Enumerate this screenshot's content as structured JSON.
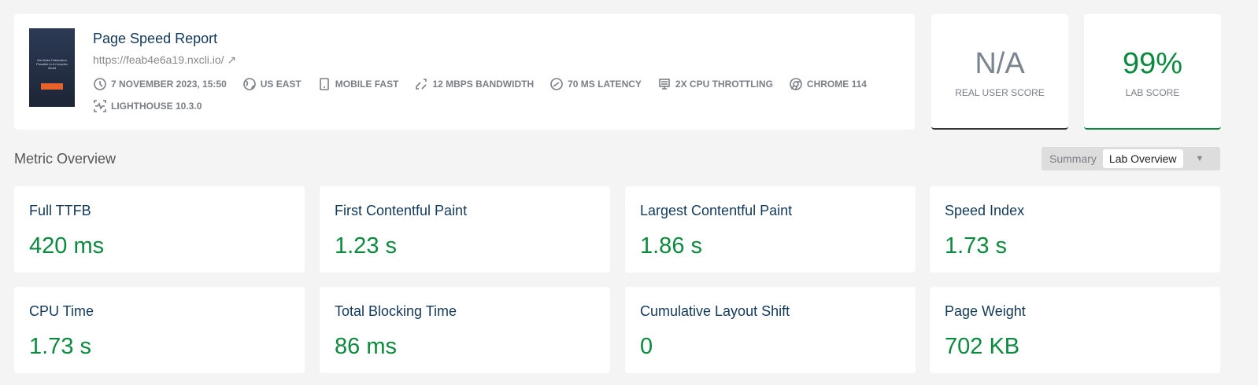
{
  "report": {
    "title": "Page Speed Report",
    "url": "https://feab4e6a19.nxcli.io/",
    "thumbnail_text": "We Make Fabrication Possible In A Complex World",
    "meta": [
      {
        "icon": "clock-icon",
        "label": "7 NOVEMBER 2023, 15:50"
      },
      {
        "icon": "globe-icon",
        "label": "US EAST"
      },
      {
        "icon": "mobile-icon",
        "label": "MOBILE FAST"
      },
      {
        "icon": "bandwidth-icon",
        "label": "12 MBPS BANDWIDTH"
      },
      {
        "icon": "latency-icon",
        "label": "70 MS LATENCY"
      },
      {
        "icon": "cpu-icon",
        "label": "2X CPU THROTTLING"
      },
      {
        "icon": "chrome-icon",
        "label": "CHROME 114"
      },
      {
        "icon": "lighthouse-icon",
        "label": "LIGHTHOUSE 10.3.0"
      }
    ]
  },
  "scores": {
    "real_user": {
      "value": "N/A",
      "label": "REAL USER SCORE"
    },
    "lab": {
      "value": "99%",
      "label": "LAB SCORE"
    }
  },
  "section_title": "Metric Overview",
  "toggle": {
    "options": [
      "Summary",
      "Lab Overview"
    ],
    "selected": "Lab Overview"
  },
  "metrics": [
    {
      "name": "Full TTFB",
      "value": "420 ms"
    },
    {
      "name": "First Contentful Paint",
      "value": "1.23 s"
    },
    {
      "name": "Largest Contentful Paint",
      "value": "1.86 s"
    },
    {
      "name": "Speed Index",
      "value": "1.73 s"
    },
    {
      "name": "CPU Time",
      "value": "1.73 s"
    },
    {
      "name": "Total Blocking Time",
      "value": "86 ms"
    },
    {
      "name": "Cumulative Layout Shift",
      "value": "0"
    },
    {
      "name": "Page Weight",
      "value": "702 KB"
    }
  ],
  "colors": {
    "good": "#0b8a3e",
    "title": "#12385a",
    "muted": "#7a7f86"
  }
}
